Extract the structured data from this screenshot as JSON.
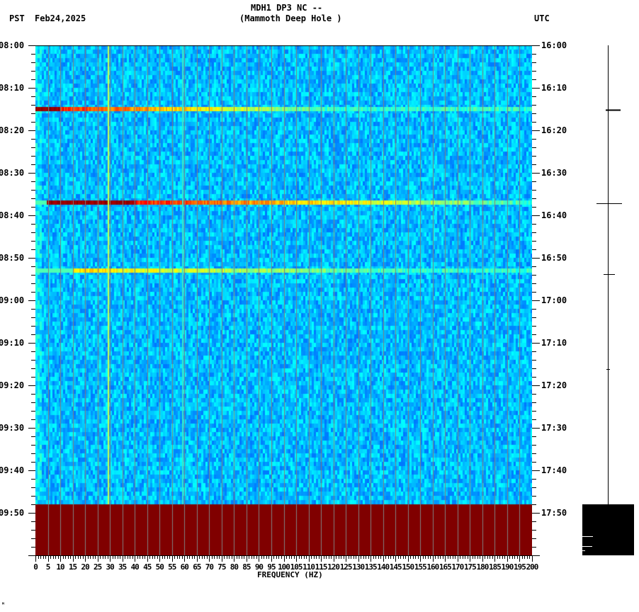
{
  "header": {
    "station_line": "MDH1 DP3 NC --",
    "site_line": "(Mammoth Deep Hole )",
    "left_timezone": "PST",
    "date": "Feb24,2025",
    "right_timezone": "UTC"
  },
  "footer_mark": "ᴹ",
  "colors": {
    "no_data": "#800000",
    "background_low": "#0050ff",
    "background_mid": "#0090ff",
    "grid": "#808080",
    "hot": "#800000"
  },
  "chart_data": {
    "type": "heatmap",
    "title": "MDH1 DP3 NC -- (Mammoth Deep Hole )",
    "xlabel": "FREQUENCY (HZ)",
    "ylabel_left": "PST",
    "ylabel_right": "UTC",
    "xlim": [
      0,
      200
    ],
    "x_ticks": [
      "0",
      "5",
      "10",
      "15",
      "20",
      "25",
      "30",
      "35",
      "40",
      "45",
      "50",
      "55",
      "60",
      "65",
      "70",
      "75",
      "80",
      "85",
      "90",
      "95",
      "100",
      "105",
      "110",
      "115",
      "120",
      "125",
      "130",
      "135",
      "140",
      "145",
      "150",
      "155",
      "160",
      "165",
      "170",
      "175",
      "180",
      "185",
      "190",
      "195",
      "200"
    ],
    "y_ticks_left": [
      "08:00",
      "08:10",
      "08:20",
      "08:30",
      "08:40",
      "08:50",
      "09:00",
      "09:10",
      "09:20",
      "09:30",
      "09:40",
      "09:50"
    ],
    "y_ticks_right": [
      "16:00",
      "16:10",
      "16:20",
      "16:30",
      "16:40",
      "16:50",
      "17:00",
      "17:10",
      "17:20",
      "17:30",
      "17:40",
      "17:50"
    ],
    "time_range_minutes": [
      0,
      120
    ],
    "grid": true,
    "background_level": "low (blue)",
    "events": [
      {
        "time_pst": "08:15",
        "time_utc": "16:15",
        "freq_hot_hz": [
          0,
          10
        ],
        "fades_by_hz": 120,
        "peak": "dark red"
      },
      {
        "time_pst": "08:37",
        "time_utc": "16:37",
        "freq_hot_hz": [
          4,
          40
        ],
        "fades_by_hz": 200,
        "peak": "dark red"
      },
      {
        "time_pst": "08:53",
        "time_utc": "16:53",
        "freq_hot_hz": [
          15,
          30
        ],
        "fades_by_hz": 150,
        "peak": "yellow"
      }
    ],
    "persistent_lines_hz": [
      29,
      59
    ],
    "no_data_from": "09:48"
  },
  "trace": {
    "ticks_at_pst": [
      "08:15",
      "08:37",
      "08:53",
      "09:16"
    ]
  }
}
